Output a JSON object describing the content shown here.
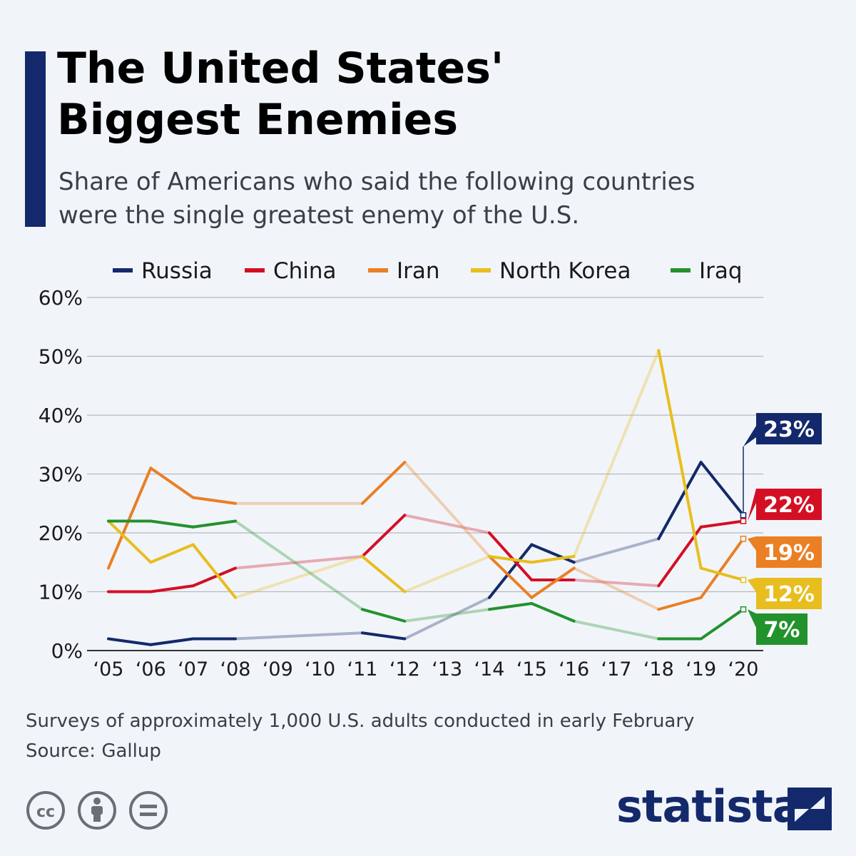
{
  "header": {
    "title_line1": "The United States'",
    "title_line2": "Biggest Enemies",
    "subtitle_line1": "Share of Americans who said the following countries",
    "subtitle_line2": "were the single greatest enemy of the U.S."
  },
  "footer": {
    "note": "Surveys of approximately 1,000 U.S. adults conducted in early February",
    "source": "Source: Gallup",
    "brand": "statista"
  },
  "icons": [
    "cc-icon",
    "attribution-icon",
    "no-derivatives-icon",
    "statista-logo-icon"
  ],
  "chart_data": {
    "type": "line",
    "title": "The United States' Biggest Enemies",
    "categories": [
      "‘05",
      "‘06",
      "‘07",
      "‘08",
      "‘09",
      "‘10",
      "‘11",
      "‘12",
      "‘13",
      "‘14",
      "‘15",
      "‘16",
      "‘17",
      "‘18",
      "‘19",
      "‘20"
    ],
    "y_ticks": [
      "0%",
      "10%",
      "20%",
      "30%",
      "40%",
      "50%",
      "60%"
    ],
    "ylim": [
      0,
      60
    ],
    "grid": true,
    "legend_position": "top",
    "series": [
      {
        "name": "Russia",
        "color": "#13296b",
        "end_label": "23%",
        "values": [
          2,
          1,
          2,
          2,
          null,
          null,
          3,
          2,
          null,
          9,
          18,
          15,
          null,
          19,
          32,
          23
        ]
      },
      {
        "name": "China",
        "color": "#d40f24",
        "end_label": "22%",
        "values": [
          10,
          10,
          11,
          14,
          null,
          null,
          16,
          23,
          null,
          20,
          12,
          12,
          null,
          11,
          21,
          22
        ]
      },
      {
        "name": "Iran",
        "color": "#ea7f24",
        "end_label": "19%",
        "values": [
          14,
          31,
          26,
          25,
          null,
          null,
          25,
          32,
          null,
          16,
          9,
          14,
          null,
          7,
          9,
          19
        ]
      },
      {
        "name": "North Korea",
        "color": "#e8bd1e",
        "end_label": "12%",
        "values": [
          22,
          15,
          18,
          9,
          null,
          null,
          16,
          10,
          null,
          16,
          15,
          16,
          null,
          51,
          14,
          12
        ]
      },
      {
        "name": "Iraq",
        "color": "#23922d",
        "end_label": "7%",
        "values": [
          22,
          22,
          21,
          22,
          null,
          null,
          7,
          5,
          null,
          7,
          8,
          5,
          null,
          2,
          2,
          7
        ]
      }
    ]
  }
}
